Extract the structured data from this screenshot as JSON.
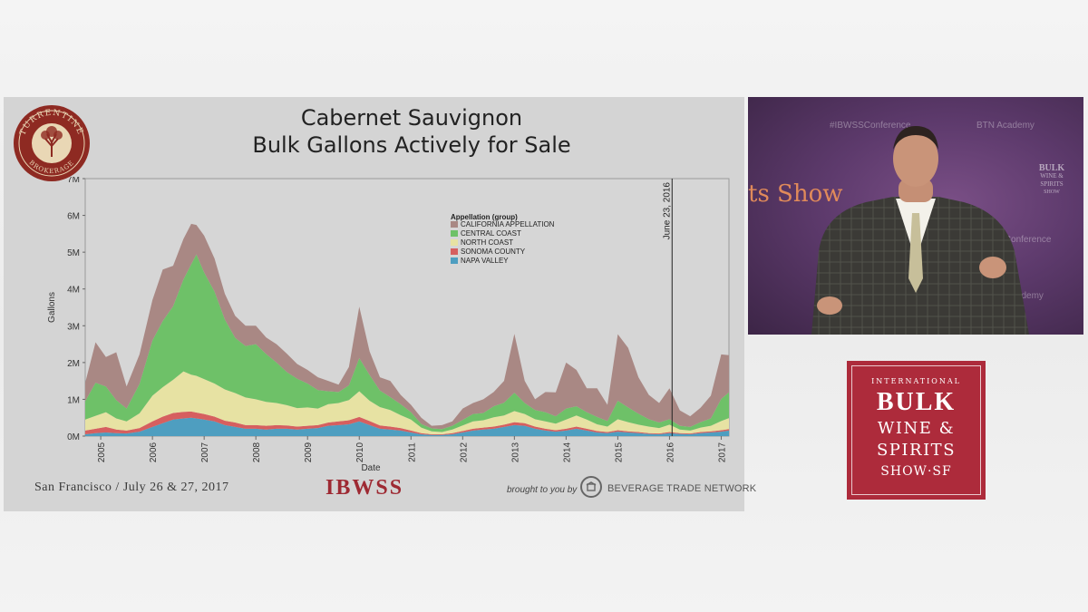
{
  "slide": {
    "title_line1": "Cabernet Sauvignon",
    "title_line2": "Bulk Gallons Actively for Sale",
    "logo_text_top": "TURRENTINE",
    "logo_text_bottom": "BROKERAGE",
    "footer_location": "San Francisco / July 26 & 27, 2017",
    "footer_event": "IBWSS",
    "footer_brought": "brought to you by",
    "footer_sponsor": "BEVERAGE TRADE NETWORK"
  },
  "video": {
    "hashtag": "#IBWSSConference",
    "academy": "BTN Academy",
    "backdrop_text": "ts Show",
    "logo_bulk": "BULK",
    "logo_line2": "WINE &",
    "logo_line3": "SPIRITS",
    "logo_line4": "SHOW"
  },
  "show_logo": {
    "line1": "INTERNATIONAL",
    "line2": "BULK",
    "line3": "WINE &",
    "line4": "SPIRITS",
    "line5": "SHOW·SF"
  },
  "chart_data": {
    "type": "area",
    "stacked": true,
    "xlabel": "Date",
    "ylabel": "Gallons",
    "xlim": [
      2004.7,
      2017.15
    ],
    "ylim": [
      0,
      7000000
    ],
    "y_ticks": [
      0,
      1000000,
      2000000,
      3000000,
      4000000,
      5000000,
      6000000,
      7000000
    ],
    "y_tick_labels": [
      "0M",
      "1M",
      "2M",
      "3M",
      "4M",
      "5M",
      "6M",
      "7M"
    ],
    "x_ticks": [
      2005,
      2006,
      2007,
      2008,
      2009,
      2010,
      2011,
      2012,
      2013,
      2014,
      2015,
      2016,
      2017
    ],
    "x_tick_labels": [
      "2005",
      "2006",
      "2007",
      "2008",
      "2009",
      "2010",
      "2011",
      "2012",
      "2013",
      "2014",
      "2015",
      "2016",
      "2017"
    ],
    "legend_title": "Appellation (group)",
    "legend_position": "top-center",
    "annotation": {
      "x": 2016.05,
      "label": "June 23, 2016"
    },
    "x": [
      2004.7,
      2004.9,
      2005.1,
      2005.3,
      2005.5,
      2005.75,
      2006.0,
      2006.2,
      2006.4,
      2006.6,
      2006.75,
      2006.85,
      2007.0,
      2007.2,
      2007.4,
      2007.6,
      2007.8,
      2008.0,
      2008.2,
      2008.4,
      2008.6,
      2008.8,
      2009.0,
      2009.2,
      2009.4,
      2009.6,
      2009.8,
      2010.0,
      2010.2,
      2010.4,
      2010.6,
      2010.8,
      2011.0,
      2011.2,
      2011.4,
      2011.6,
      2011.8,
      2012.0,
      2012.2,
      2012.4,
      2012.6,
      2012.8,
      2013.0,
      2013.2,
      2013.4,
      2013.6,
      2013.8,
      2014.0,
      2014.2,
      2014.4,
      2014.6,
      2014.8,
      2015.0,
      2015.2,
      2015.4,
      2015.6,
      2015.8,
      2016.0,
      2016.2,
      2016.4,
      2016.6,
      2016.8,
      2017.0,
      2017.15
    ],
    "series": [
      {
        "name": "NAPA VALLEY",
        "color": "#4e9ec0",
        "values": [
          50000,
          80000,
          100000,
          80000,
          70000,
          120000,
          250000,
          350000,
          450000,
          480000,
          500000,
          480000,
          450000,
          400000,
          300000,
          250000,
          200000,
          200000,
          180000,
          200000,
          200000,
          180000,
          200000,
          220000,
          280000,
          300000,
          320000,
          400000,
          300000,
          200000,
          180000,
          150000,
          100000,
          50000,
          30000,
          30000,
          50000,
          100000,
          150000,
          180000,
          200000,
          250000,
          300000,
          280000,
          200000,
          150000,
          120000,
          150000,
          200000,
          150000,
          100000,
          80000,
          120000,
          100000,
          80000,
          60000,
          50000,
          80000,
          60000,
          50000,
          80000,
          100000,
          120000,
          150000
        ]
      },
      {
        "name": "SONOMA COUNTY",
        "color": "#d65f5f",
        "values": [
          100000,
          120000,
          150000,
          100000,
          80000,
          100000,
          150000,
          180000,
          180000,
          180000,
          170000,
          160000,
          150000,
          130000,
          120000,
          120000,
          100000,
          100000,
          100000,
          100000,
          90000,
          80000,
          80000,
          80000,
          90000,
          100000,
          110000,
          120000,
          110000,
          90000,
          80000,
          70000,
          50000,
          30000,
          20000,
          20000,
          30000,
          40000,
          50000,
          50000,
          60000,
          60000,
          80000,
          70000,
          60000,
          50000,
          40000,
          50000,
          60000,
          50000,
          40000,
          30000,
          40000,
          30000,
          30000,
          20000,
          20000,
          30000,
          20000,
          20000,
          30000,
          30000,
          40000,
          40000
        ]
      },
      {
        "name": "NORTH COAST",
        "color": "#e7e2a3",
        "values": [
          300000,
          350000,
          400000,
          300000,
          250000,
          400000,
          700000,
          800000,
          900000,
          1100000,
          1000000,
          1000000,
          950000,
          900000,
          850000,
          800000,
          750000,
          700000,
          650000,
          600000,
          550000,
          500000,
          500000,
          450000,
          500000,
          500000,
          550000,
          700000,
          550000,
          500000,
          450000,
          350000,
          300000,
          150000,
          80000,
          60000,
          100000,
          150000,
          200000,
          200000,
          250000,
          250000,
          300000,
          250000,
          200000,
          200000,
          180000,
          250000,
          300000,
          250000,
          180000,
          150000,
          300000,
          250000,
          200000,
          180000,
          150000,
          200000,
          100000,
          80000,
          120000,
          150000,
          250000,
          300000
        ]
      },
      {
        "name": "CENTRAL COAST",
        "color": "#6ec168",
        "values": [
          500000,
          900000,
          700000,
          500000,
          350000,
          800000,
          1500000,
          1800000,
          2000000,
          2500000,
          3000000,
          3300000,
          2900000,
          2500000,
          1900000,
          1500000,
          1400000,
          1500000,
          1300000,
          1100000,
          900000,
          800000,
          650000,
          500000,
          350000,
          300000,
          400000,
          900000,
          700000,
          450000,
          350000,
          300000,
          200000,
          100000,
          80000,
          80000,
          100000,
          150000,
          200000,
          200000,
          300000,
          350000,
          500000,
          300000,
          250000,
          250000,
          200000,
          300000,
          250000,
          200000,
          200000,
          150000,
          500000,
          400000,
          300000,
          200000,
          150000,
          150000,
          100000,
          100000,
          150000,
          200000,
          600000,
          700000
        ]
      },
      {
        "name": "CALIFORNIA APPELLATION",
        "color": "#a98884",
        "values": [
          500000,
          1100000,
          800000,
          1300000,
          600000,
          800000,
          1100000,
          1400000,
          1100000,
          1100000,
          1100000,
          800000,
          1000000,
          900000,
          700000,
          600000,
          550000,
          500000,
          450000,
          500000,
          500000,
          400000,
          370000,
          350000,
          280000,
          200000,
          500000,
          1400000,
          640000,
          360000,
          440000,
          250000,
          200000,
          170000,
          70000,
          110000,
          120000,
          310000,
          300000,
          370000,
          390000,
          590000,
          1600000,
          600000,
          290000,
          550000,
          650000,
          1250000,
          990000,
          650000,
          780000,
          440000,
          1810000,
          1620000,
          990000,
          660000,
          530000,
          840000,
          420000,
          290000,
          390000,
          620000,
          1210000,
          1010000
        ]
      }
    ]
  }
}
